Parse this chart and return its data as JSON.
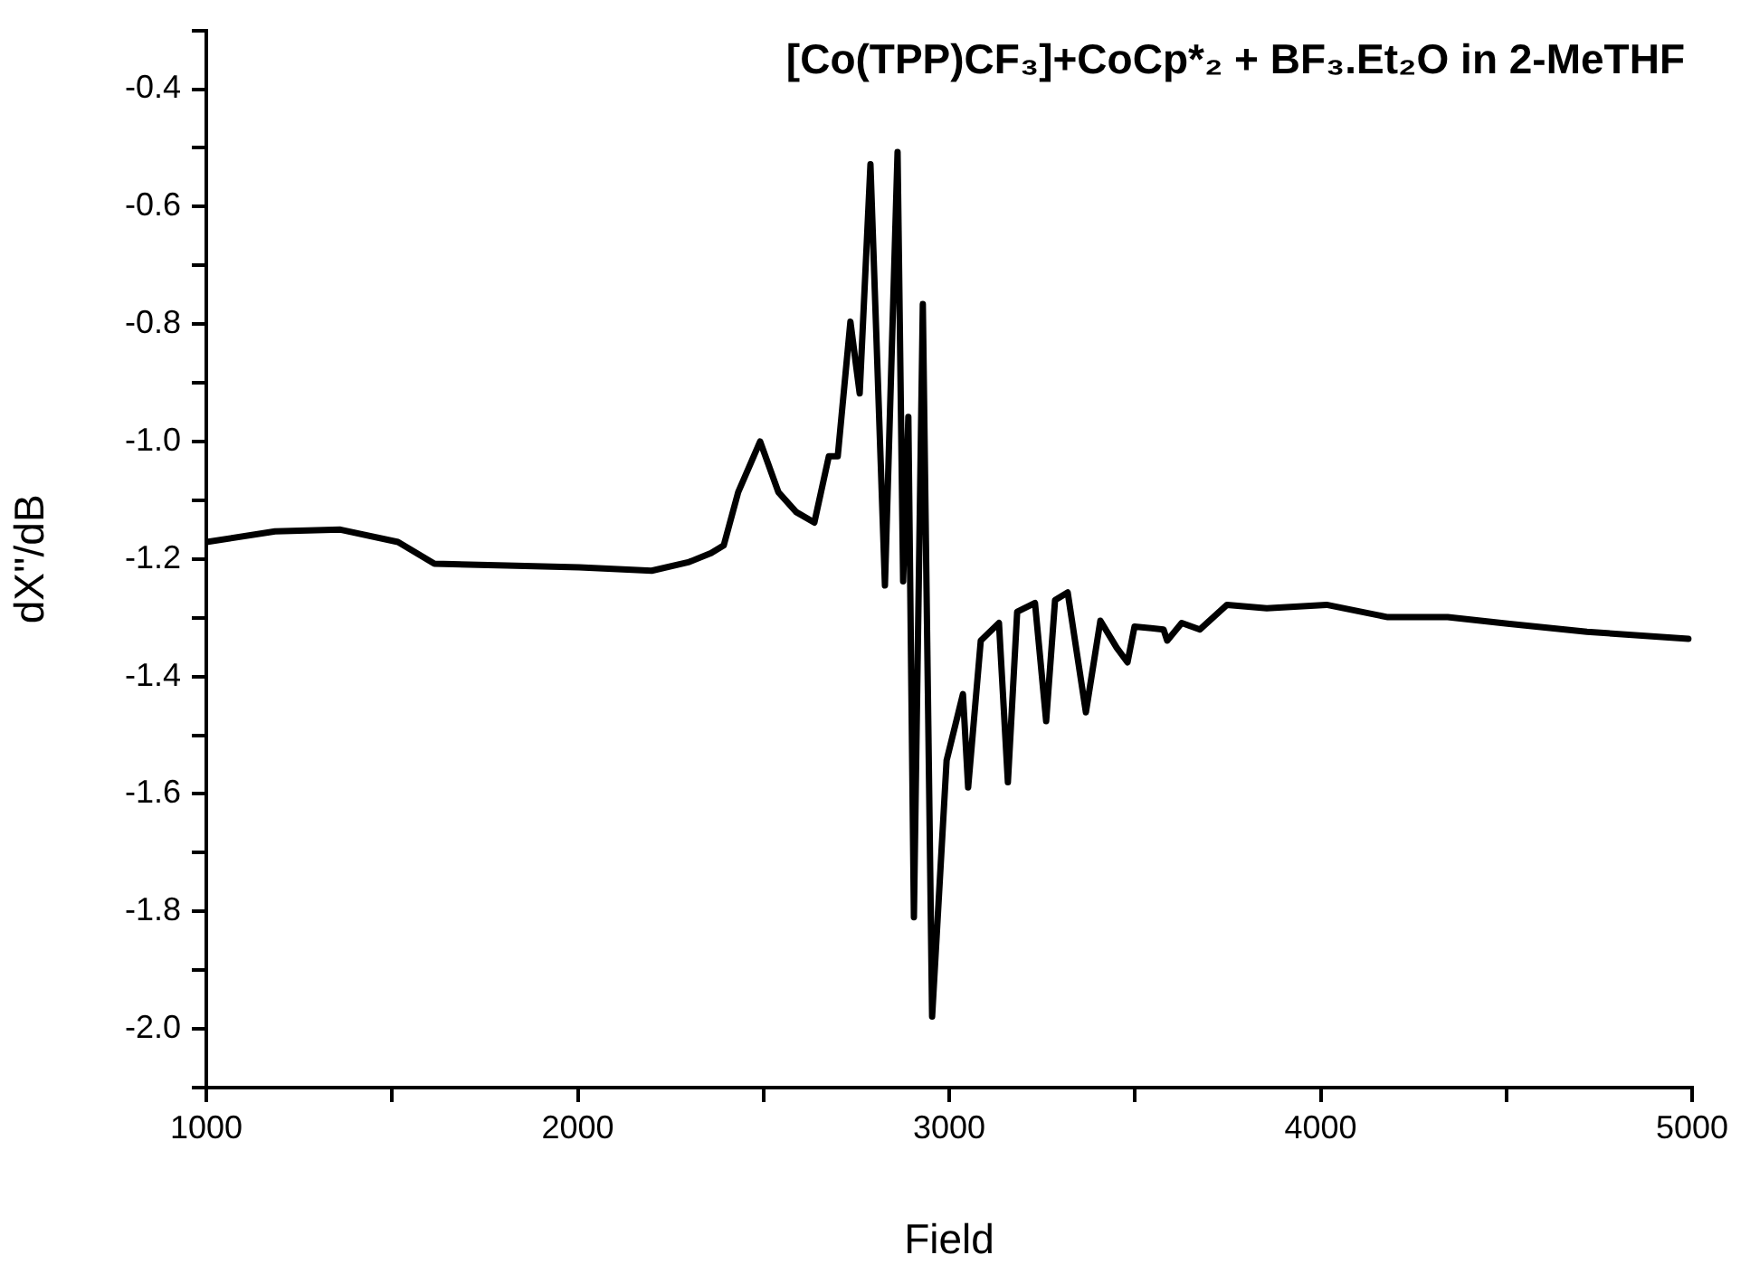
{
  "chart_data": {
    "type": "line",
    "title": "[Co(TPP)CF₃]+CoCp*₂ + BF₃.Et₂O in 2-MeTHF",
    "xlabel": "Field",
    "ylabel": "dX''/dB",
    "xlim": [
      1000,
      5000
    ],
    "xticks": [
      1000,
      {
        "value": 1500,
        "label": null
      },
      2000,
      {
        "value": 2500,
        "label": null
      },
      3000,
      {
        "value": 3500,
        "label": null
      },
      4000,
      {
        "value": 4500,
        "label": null
      },
      5000
    ],
    "ylim": [
      -2.1,
      -0.3
    ],
    "yticks": [
      {
        "value": -2.1,
        "label": null
      },
      {
        "value": -2.0,
        "label": "-2.0"
      },
      {
        "value": -1.9,
        "label": null
      },
      -1.8,
      {
        "value": -1.7,
        "label": null
      },
      -1.6,
      {
        "value": -1.5,
        "label": null
      },
      -1.4,
      {
        "value": -1.3,
        "label": null
      },
      -1.2,
      {
        "value": -1.1,
        "label": null
      },
      {
        "value": -1.0,
        "label": "-1.0"
      },
      {
        "value": -0.9,
        "label": null
      },
      -0.8,
      {
        "value": -0.7,
        "label": null
      },
      -0.6,
      {
        "value": -0.5,
        "label": null
      },
      -0.4,
      {
        "value": -0.3,
        "label": null
      }
    ],
    "grid": false,
    "legend": false,
    "marker": "none",
    "line_style": "solid",
    "series": [
      {
        "color": "#000000",
        "x": [
          1000,
          1185,
          1361,
          1516,
          1614,
          1809,
          2004,
          2199,
          2300,
          2359,
          2393,
          2432,
          2491,
          2540,
          2588,
          2637,
          2676,
          2700,
          2734,
          2759,
          2788,
          2827,
          2861,
          2876,
          2890,
          2905,
          2929,
          2954,
          2993,
          3037,
          3051,
          3085,
          3134,
          3158,
          3183,
          3231,
          3261,
          3285,
          3319,
          3368,
          3407,
          3451,
          3480,
          3499,
          3577,
          3587,
          3626,
          3675,
          3748,
          3855,
          4016,
          4181,
          4342,
          4503,
          4717,
          4990
        ],
        "values": [
          -1.171,
          -1.153,
          -1.15,
          -1.171,
          -1.208,
          -1.211,
          -1.214,
          -1.22,
          -1.205,
          -1.19,
          -1.177,
          -1.086,
          -1.0,
          -1.086,
          -1.12,
          -1.138,
          -1.025,
          -1.025,
          -0.796,
          -0.918,
          -0.528,
          -1.245,
          -0.507,
          -1.238,
          -0.958,
          -1.81,
          -0.766,
          -1.979,
          -1.543,
          -1.43,
          -1.589,
          -1.339,
          -1.309,
          -1.58,
          -1.29,
          -1.275,
          -1.476,
          -1.27,
          -1.257,
          -1.461,
          -1.305,
          -1.351,
          -1.376,
          -1.315,
          -1.32,
          -1.339,
          -1.309,
          -1.32,
          -1.278,
          -1.284,
          -1.278,
          -1.299,
          -1.299,
          -1.31,
          -1.324,
          -1.336
        ]
      }
    ]
  }
}
